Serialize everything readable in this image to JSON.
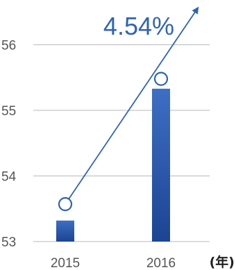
{
  "chart_data": {
    "type": "bar",
    "categories": [
      "2015",
      "2016"
    ],
    "values": [
      53.32,
      55.33
    ],
    "line_values": [
      53.57,
      55.48
    ],
    "yticks": [
      "53",
      "54",
      "55",
      "56"
    ],
    "ylim": [
      53,
      56.5
    ],
    "x_unit": "(年)",
    "annotation": "4.54%",
    "grid": true,
    "colors": {
      "bar_top": "#3d6fc4",
      "bar_bottom": "#1c4493",
      "line": "#2e64b4",
      "grid": "#b9b9b9",
      "annotation": "#2e64b4"
    }
  }
}
